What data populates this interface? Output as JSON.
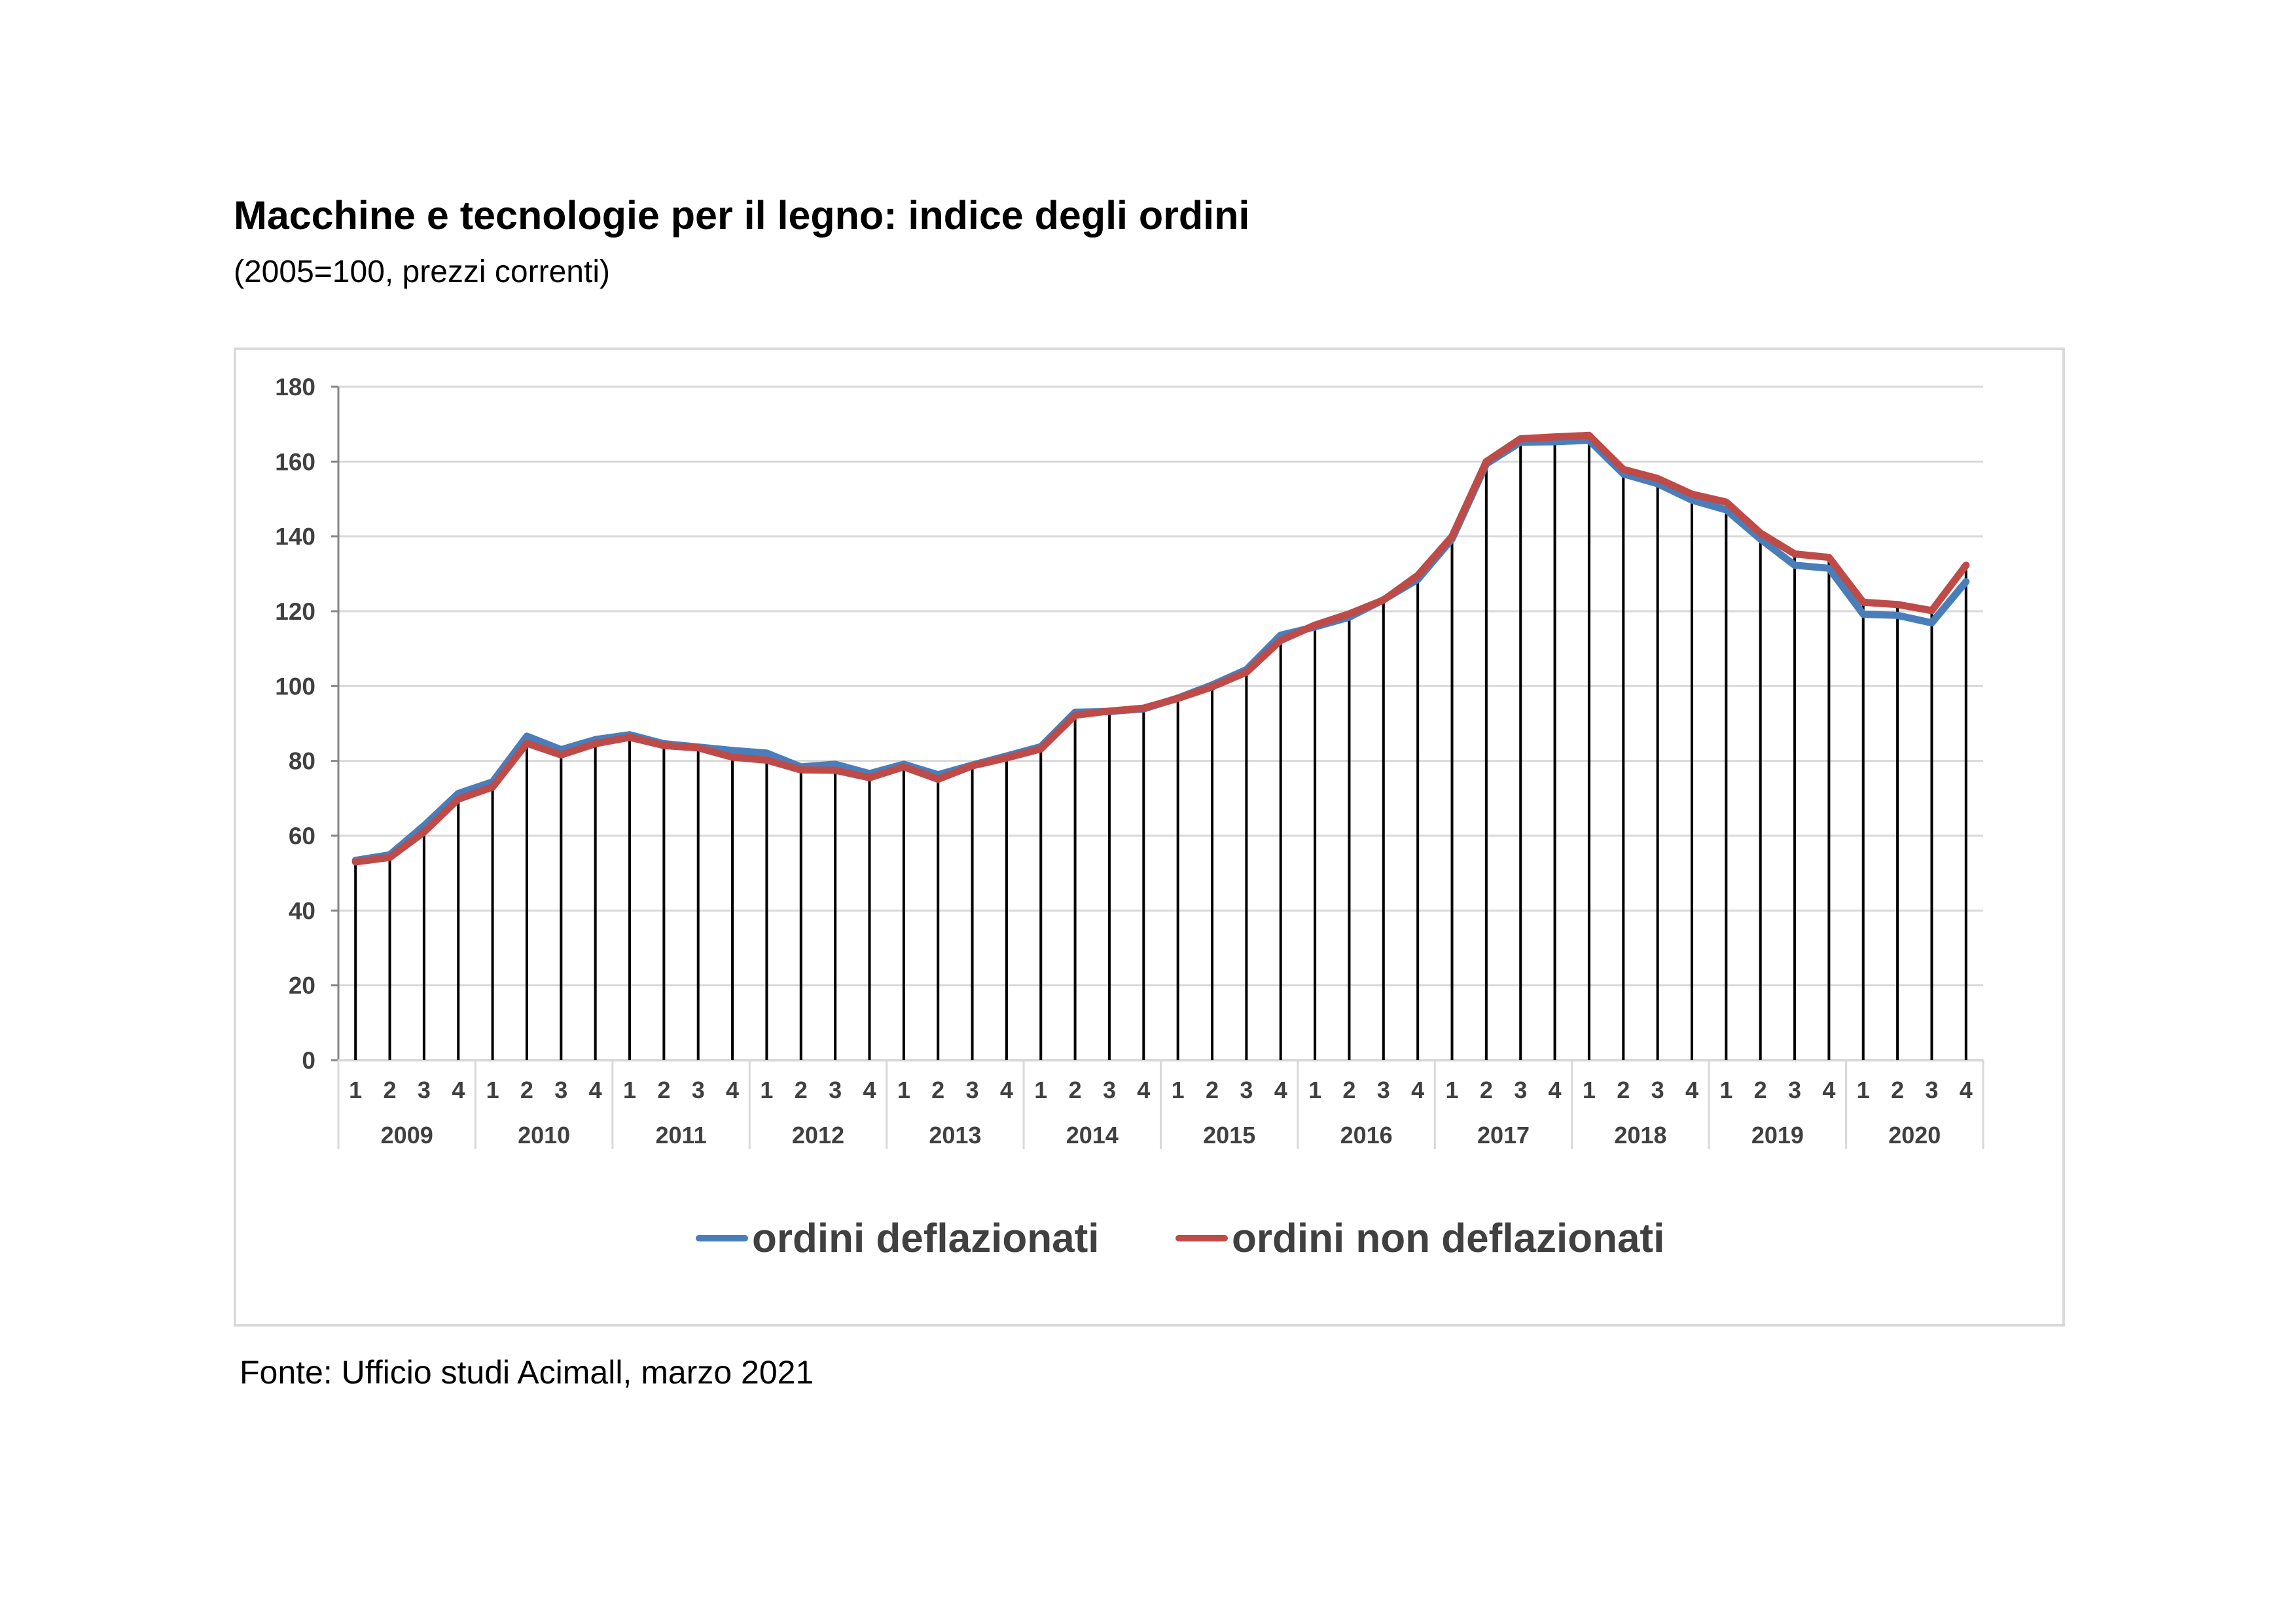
{
  "chart_data": {
    "type": "line",
    "title": "Macchine e tecnologie per il legno: indice degli ordini",
    "subtitle": "(2005=100, prezzi correnti)",
    "xlabel": "",
    "ylabel": "",
    "ylim": [
      0,
      180
    ],
    "yticks": [
      "0",
      "20",
      "40",
      "60",
      "80",
      "100",
      "120",
      "140",
      "160",
      "180"
    ],
    "grid": true,
    "legend_position": "bottom",
    "years": [
      "2009",
      "2010",
      "2011",
      "2012",
      "2013",
      "2014",
      "2015",
      "2016",
      "2017",
      "2018",
      "2019",
      "2020"
    ],
    "quarters": [
      "1",
      "2",
      "3",
      "4"
    ],
    "drop_lines": true,
    "series": [
      {
        "name": "ordini deflazionati",
        "color": "#4a7ebb",
        "values": [
          53.4,
          54.9,
          62.7,
          71.3,
          74.4,
          86.6,
          83.0,
          85.7,
          87.0,
          84.6,
          83.7,
          82.8,
          82.1,
          78.4,
          79.1,
          76.6,
          79.1,
          76.3,
          78.9,
          81.3,
          83.8,
          93.0,
          93.2,
          93.9,
          96.8,
          100.3,
          104.4,
          113.6,
          115.8,
          118.4,
          123.1,
          128.5,
          139.3,
          159.4,
          165.2,
          165.3,
          165.7,
          156.7,
          154.1,
          149.7,
          147.1,
          139.3,
          132.3,
          131.5,
          119.2,
          118.9,
          116.9,
          127.9
        ]
      },
      {
        "name": "ordini non deflazionati",
        "color": "#be4b48",
        "values": [
          53.0,
          54.2,
          61.0,
          69.8,
          73.0,
          84.7,
          81.6,
          84.6,
          86.3,
          84.1,
          83.5,
          81.0,
          80.2,
          77.6,
          77.5,
          75.5,
          78.4,
          75.1,
          78.7,
          80.8,
          83.2,
          92.2,
          93.3,
          94.1,
          96.7,
          99.8,
          103.7,
          112.2,
          116.3,
          119.3,
          123.0,
          129.6,
          140.0,
          160.0,
          166.1,
          166.6,
          167.0,
          157.9,
          155.5,
          151.3,
          149.2,
          140.9,
          135.3,
          134.4,
          122.4,
          121.8,
          120.2,
          132.3
        ]
      }
    ]
  },
  "source": "Fonte: Ufficio studi Acimall, marzo 2021",
  "colors": {
    "gridline": "#d9d9d9",
    "axis": "#868686",
    "label": "#404040",
    "dropline": "#000000"
  }
}
